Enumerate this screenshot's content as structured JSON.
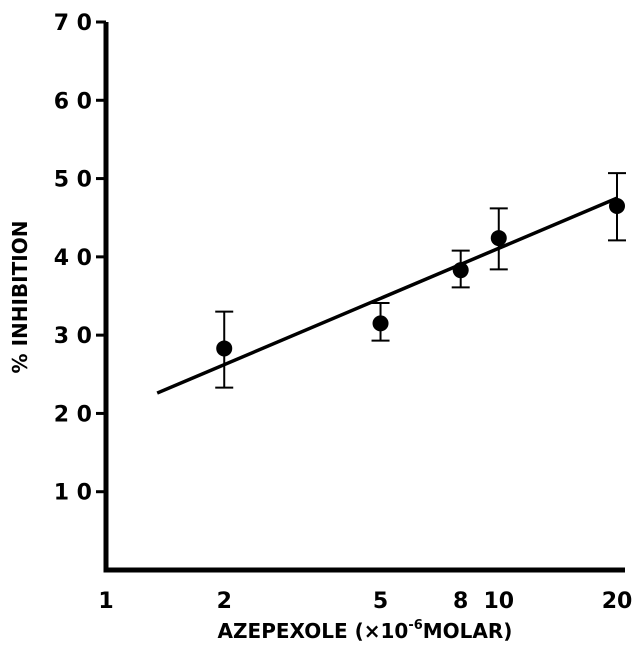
{
  "chart_data": {
    "type": "scatter",
    "x_scale": "log",
    "xlabel": {
      "prefix": "AZEPEXOLE (",
      "base": "×10",
      "exponent": "-6",
      "suffix": "MOLAR)"
    },
    "ylabel": "% INHIBITION",
    "xlim": [
      1,
      20
    ],
    "ylim": [
      0,
      70
    ],
    "x_ticks": [
      1,
      2,
      5,
      8,
      10,
      20
    ],
    "y_ticks": [
      10,
      20,
      30,
      40,
      50,
      60,
      70
    ],
    "y_tick_labels": [
      "1 0",
      "2 0",
      "3 0",
      "4 0",
      "5 0",
      "6 0",
      "7 0"
    ],
    "grid": false,
    "series": [
      {
        "points": [
          {
            "x": 2,
            "y": 28.3,
            "err_low": 23.3,
            "err_high": 33.0
          },
          {
            "x": 5,
            "y": 31.5,
            "err_low": 29.3,
            "err_high": 34.1
          },
          {
            "x": 8,
            "y": 38.3,
            "err_low": 36.1,
            "err_high": 40.8
          },
          {
            "x": 10,
            "y": 42.4,
            "err_low": 38.4,
            "err_high": 46.2
          },
          {
            "x": 20,
            "y": 46.5,
            "err_low": 42.1,
            "err_high": 50.7
          }
        ]
      }
    ],
    "fit_line": {
      "x": [
        1.35,
        20
      ],
      "y": [
        22.6,
        47.5
      ]
    }
  }
}
